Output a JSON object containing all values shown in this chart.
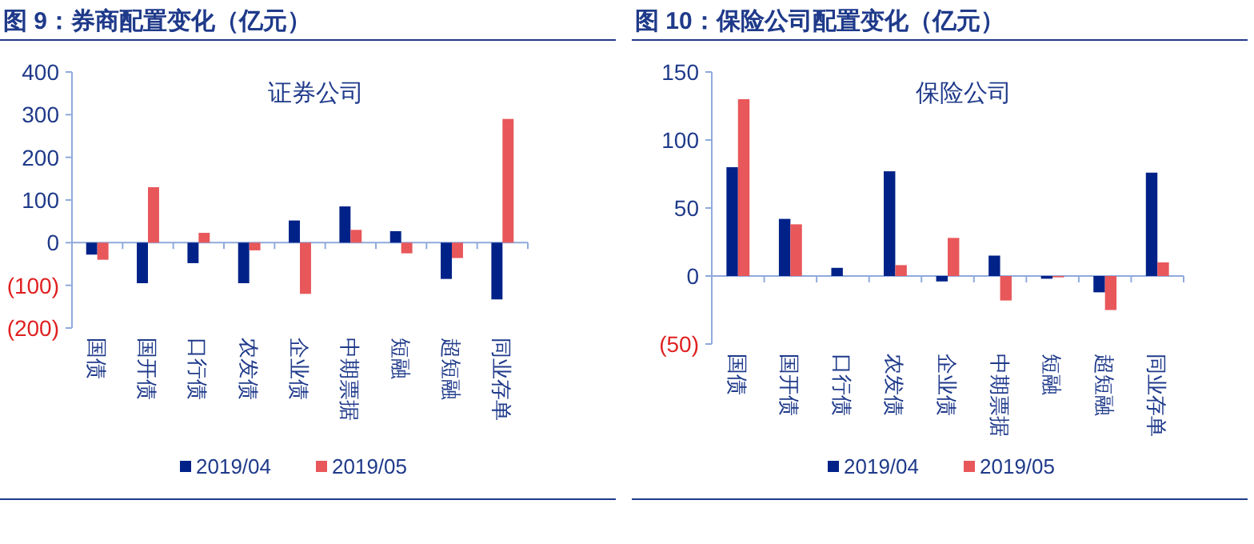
{
  "chart_data": [
    {
      "type": "bar",
      "title": "图 9：券商配置变化（亿元）",
      "subtitle": "证券公司",
      "categories": [
        "国债",
        "国开债",
        "口行债",
        "农发债",
        "企业债",
        "中期票据",
        "短融",
        "超短融",
        "同业存单"
      ],
      "series": [
        {
          "name": "2019/04",
          "color": "#002288",
          "values": [
            -28,
            -95,
            -48,
            -95,
            52,
            85,
            27,
            -85,
            -133
          ]
        },
        {
          "name": "2019/05",
          "color": "#e8575a",
          "values": [
            -40,
            130,
            23,
            -18,
            -120,
            30,
            -25,
            -36,
            290
          ]
        }
      ],
      "ylim": [
        -200,
        400
      ],
      "yticks": [
        {
          "value": -200,
          "label": "(200)"
        },
        {
          "value": -100,
          "label": "(100)"
        },
        0,
        100,
        200,
        300,
        400
      ],
      "grid": false,
      "legend": "bottom",
      "ref_lines": [
        {
          "axis": "y",
          "value": 0,
          "color": "#8faadc"
        }
      ]
    },
    {
      "type": "bar",
      "title": "图 10：保险公司配置变化（亿元）",
      "subtitle": "保险公司",
      "categories": [
        "国债",
        "国开债",
        "口行债",
        "农发债",
        "企业债",
        "中期票据",
        "短融",
        "超短融",
        "同业存单"
      ],
      "series": [
        {
          "name": "2019/04",
          "color": "#002288",
          "values": [
            80,
            42,
            6,
            77,
            -4,
            15,
            -2,
            -12,
            76
          ]
        },
        {
          "name": "2019/05",
          "color": "#e8575a",
          "values": [
            130,
            38,
            0,
            8,
            28,
            -18,
            -1,
            -25,
            10
          ]
        }
      ],
      "ylim": [
        -50,
        150
      ],
      "yticks": [
        {
          "value": -50,
          "label": "(50)"
        },
        0,
        50,
        100,
        150
      ],
      "grid": false,
      "legend": "bottom",
      "ref_lines": [
        {
          "axis": "y",
          "value": 0,
          "color": "#8faadc"
        }
      ]
    }
  ]
}
